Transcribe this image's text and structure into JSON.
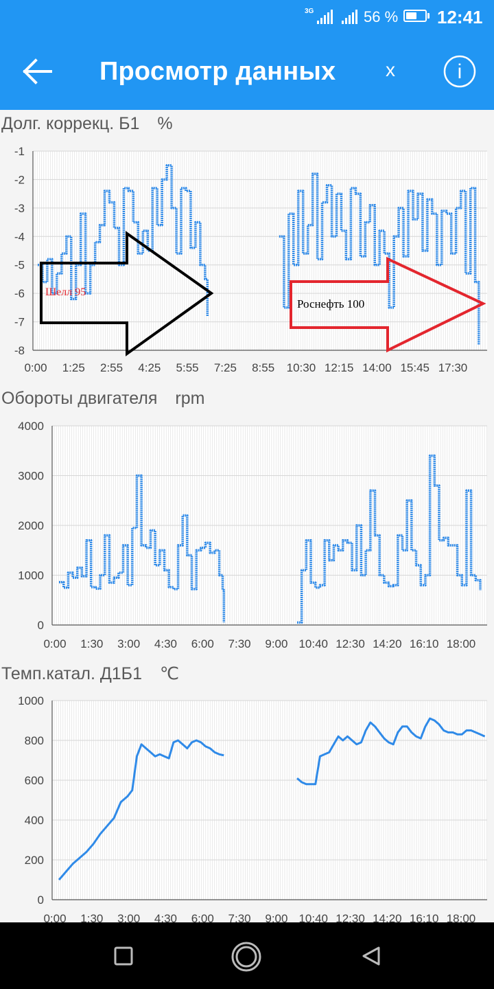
{
  "status_bar": {
    "network": "3G",
    "battery_text": "56 %",
    "battery_level": 0.56,
    "clock": "12:41"
  },
  "app_bar": {
    "title": "Просмотр данных",
    "clear_label": "x",
    "info_label": "i",
    "back_icon": "arrow-left-icon",
    "info_icon": "info-circle-icon"
  },
  "colors": {
    "primary": "#2196f3",
    "series": "#2f8ae8",
    "black_arrow": "#000000",
    "red_arrow": "#e3262e"
  },
  "charts": [
    {
      "title": "Долг. коррекц. Б1",
      "unit": "%",
      "annotations": [
        {
          "text": "Шелл 95",
          "color": "#e3262e"
        },
        {
          "text": "Роснефть 100",
          "color": "#000000"
        }
      ]
    },
    {
      "title": "Обороты двигателя",
      "unit": "rpm"
    },
    {
      "title": "Темп.катал. Д1Б1",
      "unit": "℃"
    }
  ],
  "chart_data": [
    {
      "type": "line",
      "ylim": [
        -8,
        -1
      ],
      "y_ticks": [
        "-1",
        "-2",
        "-3",
        "-4",
        "-5",
        "-6",
        "-7",
        "-8"
      ],
      "x_ticks": [
        "0:00",
        "1:25",
        "2:55",
        "4:25",
        "5:55",
        "7:25",
        "8:55",
        "10:30",
        "12:15",
        "14:00",
        "15:45",
        "17:30"
      ],
      "series": [
        {
          "segments": [
            {
              "x": [
                0.2,
                0.4,
                0.6,
                0.8,
                1.0,
                1.2,
                1.4,
                1.6,
                1.8,
                2.0,
                2.2,
                2.4,
                2.6,
                2.8,
                3.0,
                3.2,
                3.4,
                3.6,
                3.8,
                4.0,
                4.2,
                4.4,
                4.6,
                4.8,
                5.0,
                5.2,
                5.4,
                5.6,
                5.8,
                6.0,
                6.2,
                6.4,
                6.6,
                6.8,
                7.0,
                7.2,
                7.3
              ],
              "y": [
                -5.0,
                -5.6,
                -4.8,
                -6.0,
                -5.3,
                -4.6,
                -4.0,
                -6.2,
                -5.0,
                -3.2,
                -6.0,
                -5.0,
                -4.2,
                -3.6,
                -2.4,
                -2.8,
                -3.7,
                -5.0,
                -2.3,
                -2.4,
                -3.5,
                -4.6,
                -3.8,
                -4.5,
                -2.3,
                -3.6,
                -2.0,
                -1.5,
                -3.0,
                -4.6,
                -2.3,
                -2.4,
                -4.4,
                -3.5,
                -5.0,
                -5.5,
                -6.8
              ]
            }
          ]
        },
        {
          "segments": [
            {
              "x": [
                10.3,
                10.5,
                10.7,
                10.9,
                11.1,
                11.3,
                11.5,
                11.7,
                11.9,
                12.1,
                12.3,
                12.5,
                12.7,
                12.9,
                13.1,
                13.3,
                13.5,
                13.7,
                13.9,
                14.1,
                14.3,
                14.5,
                14.7,
                14.9,
                15.1,
                15.3,
                15.5,
                15.7,
                15.9,
                16.1,
                16.3,
                16.5,
                16.7,
                16.9,
                17.1,
                17.3,
                17.5,
                17.7,
                17.9,
                18.1,
                18.3,
                18.5,
                18.65
              ],
              "y": [
                -4.0,
                -6.5,
                -3.2,
                -5.0,
                -2.4,
                -4.6,
                -3.6,
                -1.8,
                -4.8,
                -2.8,
                -2.2,
                -4.0,
                -2.5,
                -3.8,
                -4.8,
                -2.3,
                -2.5,
                -4.7,
                -3.5,
                -2.9,
                -5.0,
                -3.8,
                -4.6,
                -6.5,
                -4.0,
                -3.0,
                -4.7,
                -2.4,
                -3.4,
                -2.5,
                -4.5,
                -2.7,
                -3.2,
                -5.0,
                -3.1,
                -3.2,
                -4.6,
                -3.0,
                -2.4,
                -5.3,
                -2.3,
                -5.6,
                -7.8
              ]
            }
          ]
        }
      ]
    },
    {
      "type": "line",
      "ylim": [
        0,
        4000
      ],
      "y_ticks": [
        "4000",
        "3000",
        "2000",
        "1000",
        "0"
      ],
      "x_ticks": [
        "0:00",
        "1:30",
        "3:00",
        "4:30",
        "6:00",
        "7:30",
        "9:00",
        "10:40",
        "12:30",
        "14:20",
        "16:10",
        "18:00"
      ],
      "series": [
        {
          "segments": [
            {
              "x": [
                0.3,
                0.5,
                0.7,
                0.9,
                1.1,
                1.3,
                1.5,
                1.7,
                1.9,
                2.1,
                2.3,
                2.5,
                2.7,
                2.9,
                3.1,
                3.3,
                3.5,
                3.7,
                3.9,
                4.1,
                4.3,
                4.5,
                4.7,
                4.9,
                5.1,
                5.3,
                5.5,
                5.7,
                5.9,
                6.1,
                6.3,
                6.5,
                6.7,
                6.9,
                7.1,
                7.3,
                7.45,
                7.5
              ],
              "y": [
                860,
                750,
                1050,
                950,
                1150,
                980,
                1700,
                760,
                730,
                1000,
                1800,
                850,
                950,
                1050,
                1600,
                800,
                1950,
                3000,
                1600,
                1550,
                1900,
                1200,
                1500,
                1100,
                760,
                720,
                1600,
                2200,
                1400,
                720,
                1500,
                1550,
                1650,
                1450,
                1500,
                1000,
                700,
                50
              ]
            }
          ]
        },
        {
          "segments": [
            {
              "x": [
                10.7,
                10.9,
                11.1,
                11.3,
                11.5,
                11.7,
                11.9,
                12.1,
                12.3,
                12.5,
                12.7,
                12.9,
                13.1,
                13.3,
                13.5,
                13.7,
                13.9,
                14.1,
                14.3,
                14.5,
                14.7,
                14.9,
                15.1,
                15.3,
                15.5,
                15.7,
                15.9,
                16.1,
                16.3,
                16.5,
                16.7,
                16.9,
                17.1,
                17.3,
                17.5,
                17.7,
                17.9,
                18.1,
                18.3,
                18.5,
                18.7
              ],
              "y": [
                50,
                1100,
                1700,
                850,
                750,
                800,
                1700,
                1300,
                1600,
                1500,
                1700,
                1650,
                1100,
                2000,
                1000,
                1500,
                2700,
                1800,
                1000,
                850,
                780,
                800,
                1800,
                1500,
                2500,
                1500,
                1200,
                800,
                1000,
                3400,
                2800,
                1700,
                1750,
                1600,
                1600,
                1000,
                800,
                2700,
                1000,
                900,
                700
              ]
            }
          ]
        }
      ]
    },
    {
      "type": "line",
      "ylim": [
        0,
        1000
      ],
      "y_ticks": [
        "1000",
        "800",
        "600",
        "400",
        "200",
        "0"
      ],
      "x_ticks": [
        "0:00",
        "1:30",
        "3:00",
        "4:30",
        "6:00",
        "7:30",
        "9:00",
        "10:40",
        "12:30",
        "14:20",
        "16:10",
        "18:00"
      ],
      "series": [
        {
          "segments": [
            {
              "x": [
                0.3,
                0.6,
                0.9,
                1.2,
                1.5,
                1.8,
                2.1,
                2.4,
                2.7,
                3.0,
                3.3,
                3.5,
                3.7,
                3.9,
                4.1,
                4.3,
                4.5,
                4.7,
                4.9,
                5.1,
                5.3,
                5.5,
                5.7,
                5.9,
                6.1,
                6.3,
                6.5,
                6.7,
                6.9,
                7.1,
                7.3,
                7.5
              ],
              "y": [
                100,
                140,
                180,
                210,
                240,
                280,
                330,
                370,
                410,
                490,
                520,
                550,
                720,
                780,
                760,
                740,
                720,
                730,
                720,
                710,
                790,
                800,
                780,
                760,
                790,
                800,
                790,
                770,
                760,
                740,
                730,
                725
              ]
            }
          ]
        },
        {
          "segments": [
            {
              "x": [
                10.7,
                10.9,
                11.1,
                11.3,
                11.5,
                11.7,
                11.9,
                12.1,
                12.3,
                12.5,
                12.7,
                12.9,
                13.1,
                13.3,
                13.5,
                13.7,
                13.9,
                14.1,
                14.3,
                14.5,
                14.7,
                14.9,
                15.1,
                15.3,
                15.5,
                15.7,
                15.9,
                16.1,
                16.3,
                16.5,
                16.7,
                16.9,
                17.1,
                17.3,
                17.5,
                17.7,
                17.9,
                18.1,
                18.3,
                18.5,
                18.7,
                18.9
              ],
              "y": [
                610,
                590,
                580,
                580,
                580,
                720,
                730,
                740,
                780,
                820,
                800,
                820,
                800,
                780,
                790,
                850,
                890,
                870,
                840,
                810,
                790,
                780,
                840,
                870,
                870,
                840,
                820,
                810,
                870,
                910,
                900,
                880,
                850,
                840,
                840,
                830,
                830,
                850,
                850,
                840,
                830,
                820
              ]
            }
          ]
        }
      ]
    }
  ]
}
